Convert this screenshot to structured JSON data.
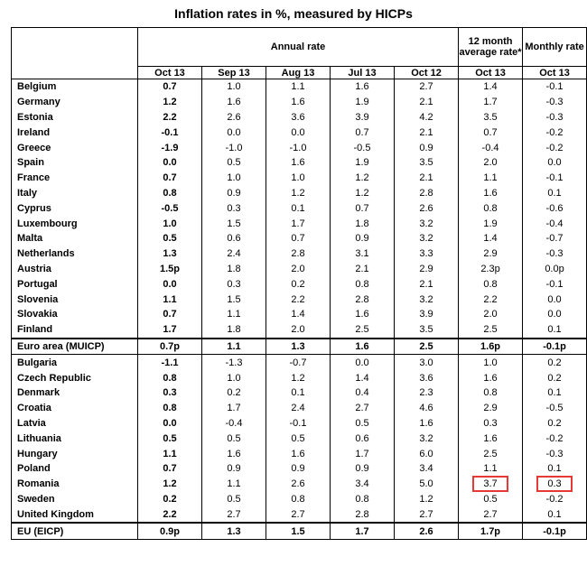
{
  "title": "Inflation rates  in %, measured by HICPs",
  "header": {
    "annual_rate": "Annual rate",
    "avg_rate": "12 month average rate*",
    "monthly_rate": "Monthly rate",
    "subcols": [
      "Oct 13",
      "Sep 13",
      "Aug 13",
      "Jul 13",
      "Oct 12",
      "Oct 13",
      "Oct 13"
    ]
  },
  "rows": [
    {
      "name": "Belgium",
      "v": [
        "0.7",
        "1.0",
        "1.1",
        "1.6",
        "2.7",
        "1.4",
        "-0.1"
      ]
    },
    {
      "name": "Germany",
      "v": [
        "1.2",
        "1.6",
        "1.6",
        "1.9",
        "2.1",
        "1.7",
        "-0.3"
      ]
    },
    {
      "name": "Estonia",
      "v": [
        "2.2",
        "2.6",
        "3.6",
        "3.9",
        "4.2",
        "3.5",
        "-0.3"
      ]
    },
    {
      "name": "Ireland",
      "v": [
        "-0.1",
        "0.0",
        "0.0",
        "0.7",
        "2.1",
        "0.7",
        "-0.2"
      ]
    },
    {
      "name": "Greece",
      "v": [
        "-1.9",
        "-1.0",
        "-1.0",
        "-0.5",
        "0.9",
        "-0.4",
        "-0.2"
      ]
    },
    {
      "name": "Spain",
      "v": [
        "0.0",
        "0.5",
        "1.6",
        "1.9",
        "3.5",
        "2.0",
        "0.0"
      ]
    },
    {
      "name": "France",
      "v": [
        "0.7",
        "1.0",
        "1.0",
        "1.2",
        "2.1",
        "1.1",
        "-0.1"
      ]
    },
    {
      "name": "Italy",
      "v": [
        "0.8",
        "0.9",
        "1.2",
        "1.2",
        "2.8",
        "1.6",
        "0.1"
      ]
    },
    {
      "name": "Cyprus",
      "v": [
        "-0.5",
        "0.3",
        "0.1",
        "0.7",
        "2.6",
        "0.8",
        "-0.6"
      ]
    },
    {
      "name": "Luxembourg",
      "v": [
        "1.0",
        "1.5",
        "1.7",
        "1.8",
        "3.2",
        "1.9",
        "-0.4"
      ]
    },
    {
      "name": "Malta",
      "v": [
        "0.5",
        "0.6",
        "0.7",
        "0.9",
        "3.2",
        "1.4",
        "-0.7"
      ]
    },
    {
      "name": "Netherlands",
      "v": [
        "1.3",
        "2.4",
        "2.8",
        "3.1",
        "3.3",
        "2.9",
        "-0.3"
      ]
    },
    {
      "name": "Austria",
      "v": [
        "1.5p",
        "1.8",
        "2.0",
        "2.1",
        "2.9",
        "2.3p",
        "0.0p"
      ]
    },
    {
      "name": "Portugal",
      "v": [
        "0.0",
        "0.3",
        "0.2",
        "0.8",
        "2.1",
        "0.8",
        "-0.1"
      ]
    },
    {
      "name": "Slovenia",
      "v": [
        "1.1",
        "1.5",
        "2.2",
        "2.8",
        "3.2",
        "2.2",
        "0.0"
      ]
    },
    {
      "name": "Slovakia",
      "v": [
        "0.7",
        "1.1",
        "1.4",
        "1.6",
        "3.9",
        "2.0",
        "0.0"
      ]
    },
    {
      "name": "Finland",
      "v": [
        "1.7",
        "1.8",
        "2.0",
        "2.5",
        "3.5",
        "2.5",
        "0.1"
      ]
    }
  ],
  "euro_area": {
    "name": "Euro area (MUICP)",
    "v": [
      "0.7p",
      "1.1",
      "1.3",
      "1.6",
      "2.5",
      "1.6p",
      "-0.1p"
    ]
  },
  "rows2": [
    {
      "name": "Bulgaria",
      "v": [
        "-1.1",
        "-1.3",
        "-0.7",
        "0.0",
        "3.0",
        "1.0",
        "0.2"
      ]
    },
    {
      "name": "Czech Republic",
      "v": [
        "0.8",
        "1.0",
        "1.2",
        "1.4",
        "3.6",
        "1.6",
        "0.2"
      ]
    },
    {
      "name": "Denmark",
      "v": [
        "0.3",
        "0.2",
        "0.1",
        "0.4",
        "2.3",
        "0.8",
        "0.1"
      ]
    },
    {
      "name": "Croatia",
      "v": [
        "0.8",
        "1.7",
        "2.4",
        "2.7",
        "4.6",
        "2.9",
        "-0.5"
      ]
    },
    {
      "name": "Latvia",
      "v": [
        "0.0",
        "-0.4",
        "-0.1",
        "0.5",
        "1.6",
        "0.3",
        "0.2"
      ]
    },
    {
      "name": "Lithuania",
      "v": [
        "0.5",
        "0.5",
        "0.5",
        "0.6",
        "3.2",
        "1.6",
        "-0.2"
      ]
    },
    {
      "name": "Hungary",
      "v": [
        "1.1",
        "1.6",
        "1.6",
        "1.7",
        "6.0",
        "2.5",
        "-0.3"
      ]
    },
    {
      "name": "Poland",
      "v": [
        "0.7",
        "0.9",
        "0.9",
        "0.9",
        "3.4",
        "1.1",
        "0.1"
      ]
    },
    {
      "name": "Romania",
      "v": [
        "1.2",
        "1.1",
        "2.6",
        "3.4",
        "5.0",
        "3.7",
        "0.3"
      ]
    },
    {
      "name": "Sweden",
      "v": [
        "0.2",
        "0.5",
        "0.8",
        "0.8",
        "1.2",
        "0.5",
        "-0.2"
      ]
    },
    {
      "name": "United Kingdom",
      "v": [
        "2.2",
        "2.7",
        "2.7",
        "2.8",
        "2.7",
        "2.7",
        "0.1"
      ]
    }
  ],
  "eu": {
    "name": "EU (EICP)",
    "v": [
      "0.9p",
      "1.3",
      "1.5",
      "1.7",
      "2.6",
      "1.7p",
      "-0.1p"
    ]
  },
  "highlight_color": "#e53935"
}
